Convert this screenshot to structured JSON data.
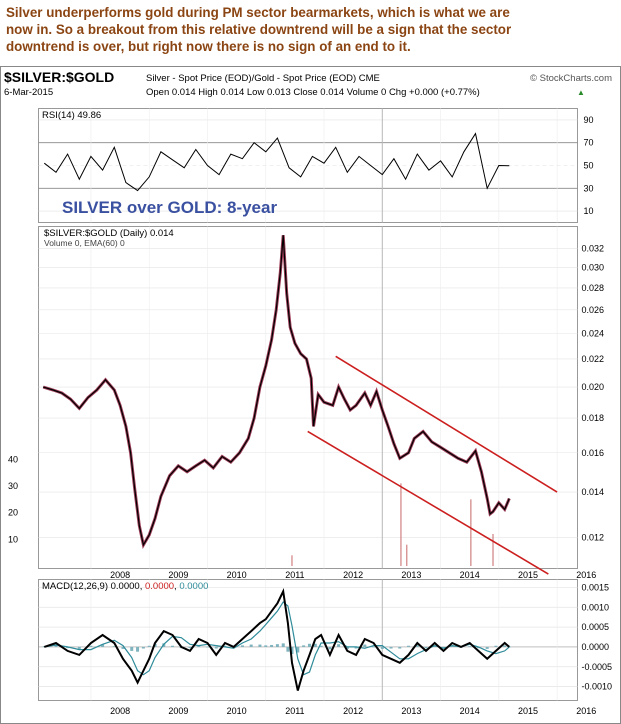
{
  "headline": {
    "line1": "Silver underperforms gold during PM sector bearmarkets, which is what we are",
    "line2": "now in. So a breakout from this relative downtrend will be a sign that the sector",
    "line3": "downtrend is over, but right now there is no sign of an end to it."
  },
  "header": {
    "symbol": "$SILVER:$GOLD",
    "description": "Silver - Spot Price (EOD)/Gold - Spot Price (EOD)  CME",
    "source": "© StockCharts.com",
    "date": "6-Mar-2015",
    "ohlc": "Open 0.014  High 0.014  Low 0.013  Close 0.014  Volume 0  Chg +0.000 (+0.77%)",
    "ohlc_marker": "▲"
  },
  "colors": {
    "headline": "#8B4513",
    "price": "#000000",
    "price_shadow": "#8B1A3A",
    "channel": "#CC1F1F",
    "annotation": "#3A50A0",
    "macd_signal": "#2E8B9A",
    "volume": "#D08080",
    "grid": "#CCCCCC"
  },
  "chart_data": [
    {
      "type": "line",
      "panel": "rsi",
      "legend": "RSI(14) 49.86",
      "y_ticks": [
        90,
        70,
        50,
        30,
        10
      ],
      "reference_levels": [
        70,
        30
      ],
      "ylim": [
        0,
        100
      ],
      "x": [
        "2007.2",
        "2007.4",
        "2007.6",
        "2007.8",
        "2008.0",
        "2008.2",
        "2008.4",
        "2008.6",
        "2008.8",
        "2009.0",
        "2009.2",
        "2009.4",
        "2009.6",
        "2009.8",
        "2010.0",
        "2010.2",
        "2010.4",
        "2010.6",
        "2010.8",
        "2011.0",
        "2011.2",
        "2011.4",
        "2011.6",
        "2011.8",
        "2012.0",
        "2012.2",
        "2012.4",
        "2012.6",
        "2012.8",
        "2013.0",
        "2013.2",
        "2013.4",
        "2013.6",
        "2013.8",
        "2014.0",
        "2014.2",
        "2014.4",
        "2014.6",
        "2014.8",
        "2015.0",
        "2015.18"
      ],
      "values": [
        52,
        44,
        60,
        38,
        58,
        46,
        66,
        35,
        28,
        40,
        62,
        55,
        48,
        64,
        50,
        42,
        60,
        56,
        70,
        62,
        74,
        48,
        40,
        58,
        52,
        66,
        44,
        58,
        50,
        42,
        56,
        38,
        60,
        46,
        54,
        40,
        62,
        78,
        30,
        50,
        49.86
      ]
    },
    {
      "type": "line",
      "panel": "price",
      "annotation": "SILVER over GOLD: 8-year",
      "legend_price": "$SILVER:$GOLD (Daily) 0.014",
      "legend_volume": "Volume 0, EMA(60) 0",
      "x_ticks": [
        "2008",
        "2009",
        "2010",
        "2011",
        "2012",
        "2013",
        "2014",
        "2015",
        "2016"
      ],
      "y_ticks": [
        0.032,
        0.03,
        0.028,
        0.026,
        0.024,
        0.022,
        0.02,
        0.018,
        0.016,
        0.014,
        0.012
      ],
      "volume_ticks": [
        40,
        30,
        20,
        10
      ],
      "scale": "log",
      "ylim": [
        0.0108,
        0.0345
      ],
      "x": [
        2007.18,
        2007.35,
        2007.5,
        2007.65,
        2007.8,
        2007.95,
        2008.1,
        2008.25,
        2008.4,
        2008.5,
        2008.6,
        2008.68,
        2008.75,
        2008.83,
        2008.9,
        2009.0,
        2009.1,
        2009.2,
        2009.35,
        2009.5,
        2009.65,
        2009.8,
        2009.95,
        2010.1,
        2010.25,
        2010.4,
        2010.55,
        2010.7,
        2010.8,
        2010.9,
        2011.0,
        2011.1,
        2011.18,
        2011.25,
        2011.3,
        2011.36,
        2011.42,
        2011.5,
        2011.6,
        2011.7,
        2011.78,
        2011.82,
        2011.9,
        2012.0,
        2012.15,
        2012.25,
        2012.35,
        2012.45,
        2012.55,
        2012.7,
        2012.8,
        2012.9,
        2013.0,
        2013.1,
        2013.2,
        2013.3,
        2013.45,
        2013.55,
        2013.7,
        2013.85,
        2014.0,
        2014.15,
        2014.3,
        2014.45,
        2014.6,
        2014.7,
        2014.8,
        2014.85,
        2014.9,
        2015.0,
        2015.1,
        2015.18
      ],
      "values": [
        0.02,
        0.0198,
        0.0196,
        0.0192,
        0.0186,
        0.0193,
        0.0198,
        0.0205,
        0.0198,
        0.0188,
        0.0175,
        0.016,
        0.0142,
        0.0125,
        0.0117,
        0.0121,
        0.0128,
        0.0138,
        0.0148,
        0.0153,
        0.015,
        0.0153,
        0.0156,
        0.0152,
        0.0158,
        0.0155,
        0.016,
        0.0168,
        0.018,
        0.02,
        0.0215,
        0.0235,
        0.026,
        0.0295,
        0.0335,
        0.0275,
        0.0245,
        0.0232,
        0.0224,
        0.022,
        0.0206,
        0.0175,
        0.0195,
        0.019,
        0.0188,
        0.02,
        0.0192,
        0.0185,
        0.0188,
        0.0196,
        0.0188,
        0.0197,
        0.0185,
        0.0175,
        0.0165,
        0.0157,
        0.016,
        0.0168,
        0.0172,
        0.0166,
        0.0163,
        0.016,
        0.0157,
        0.0155,
        0.0161,
        0.015,
        0.0137,
        0.013,
        0.0131,
        0.0135,
        0.0132,
        0.0137
      ],
      "volume_spikes": [
        {
          "x": 2011.45,
          "v": 4
        },
        {
          "x": 2013.32,
          "v": 31
        },
        {
          "x": 2013.42,
          "v": 8
        },
        {
          "x": 2014.52,
          "v": 25
        },
        {
          "x": 2014.9,
          "v": 12
        }
      ],
      "channel_upper": {
        "x": [
          2012.2,
          2016.0
        ],
        "values": [
          0.0222,
          0.014
        ]
      },
      "channel_lower": {
        "x": [
          2011.72,
          2015.85
        ],
        "values": [
          0.0172,
          0.0106
        ]
      }
    },
    {
      "type": "line",
      "panel": "macd",
      "legend": "MACD(12,26,9) 0.0000, 0.0000, 0.0000",
      "legend_parts": [
        "MACD(12,26,9) 0.0000, ",
        "0.0000",
        ", ",
        "0.0000"
      ],
      "y_ticks": [
        0.0015,
        0.001,
        0.0005,
        0.0,
        -0.0005,
        -0.001
      ],
      "ylim": [
        -0.00135,
        0.0017
      ],
      "x": [
        2007.2,
        2007.4,
        2007.6,
        2007.8,
        2008.0,
        2008.2,
        2008.4,
        2008.55,
        2008.7,
        2008.8,
        2008.9,
        2009.0,
        2009.1,
        2009.25,
        2009.4,
        2009.55,
        2009.7,
        2009.85,
        2010.0,
        2010.15,
        2010.3,
        2010.45,
        2010.6,
        2010.75,
        2010.9,
        2011.0,
        2011.1,
        2011.2,
        2011.3,
        2011.38,
        2011.45,
        2011.55,
        2011.65,
        2011.75,
        2011.85,
        2011.95,
        2012.1,
        2012.25,
        2012.4,
        2012.55,
        2012.7,
        2012.85,
        2013.0,
        2013.15,
        2013.3,
        2013.45,
        2013.6,
        2013.75,
        2013.9,
        2014.05,
        2014.2,
        2014.35,
        2014.5,
        2014.65,
        2014.8,
        2014.95,
        2015.1,
        2015.18
      ],
      "values": [
        0.0,
        0.0001,
        -0.0001,
        -0.0002,
        0.0001,
        0.0003,
        0.0001,
        -0.0003,
        -0.0006,
        -0.0009,
        -0.0006,
        -0.0003,
        0.0001,
        0.0004,
        0.0003,
        0.0,
        -0.0001,
        0.0002,
        0.0001,
        -0.0002,
        0.0001,
        0.0,
        0.0002,
        0.0004,
        0.0006,
        0.0007,
        0.0009,
        0.0011,
        0.0014,
        0.0006,
        -0.0004,
        -0.0011,
        -0.0006,
        -0.0002,
        0.0002,
        0.0003,
        -0.0002,
        0.0003,
        -0.0001,
        -0.0002,
        0.0002,
        0.0001,
        -0.0002,
        -0.0003,
        -0.0004,
        -0.0002,
        0.0001,
        -0.0001,
        0.0001,
        -0.0001,
        0.0001,
        0.0,
        0.0001,
        -0.0001,
        -0.0003,
        -0.0001,
        0.0001,
        0.0
      ],
      "histogram_values": [
        2e-05,
        4e-05,
        -3e-05,
        -5e-05,
        3e-05,
        6e-05,
        2e-05,
        -5e-05,
        -0.0001,
        -0.00012,
        -4e-05,
        3e-05,
        8e-05,
        9e-05,
        3e-05,
        -3e-05,
        -3e-05,
        4e-05,
        1e-05,
        -4e-05,
        3e-05,
        1e-05,
        4e-05,
        6e-05,
        6e-05,
        4e-05,
        5e-05,
        7e-05,
        9e-05,
        -0.00012,
        -0.00018,
        -0.00014,
        4e-05,
        8e-05,
        8e-05,
        3e-05,
        -6e-05,
        7e-05,
        -5e-05,
        -4e-05,
        6e-05,
        1e-05,
        -5e-05,
        -4e-05,
        -4e-05,
        3e-05,
        6e-05,
        -3e-05,
        4e-05,
        -4e-05,
        3e-05,
        -1e-05,
        2e-05,
        -3e-05,
        -5e-05,
        3e-05,
        4e-05,
        1e-05
      ]
    }
  ]
}
